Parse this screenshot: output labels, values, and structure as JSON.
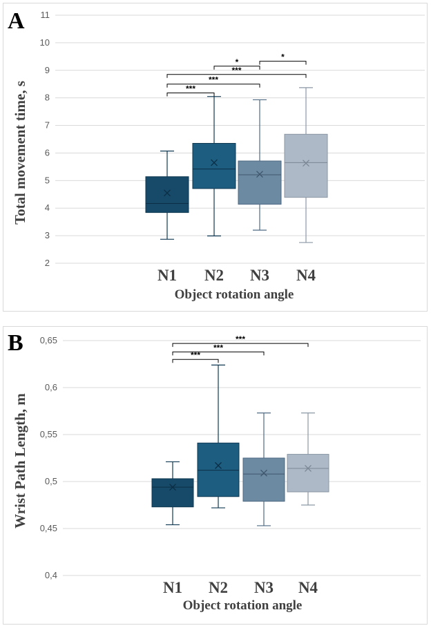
{
  "chart_data": [
    {
      "panel_letter": "A",
      "type": "box",
      "ylabel": "Total movement time, s",
      "xlabel": "Object rotation angle",
      "categories": [
        "N1",
        "N2",
        "N3",
        "N4"
      ],
      "ylim": [
        2,
        11
      ],
      "yticks": [
        "2",
        "3",
        "4",
        "5",
        "6",
        "7",
        "8",
        "9",
        "10",
        "11"
      ],
      "grid": true,
      "colors": [
        "#174a68",
        "#1c5d80",
        "#6d8aa3",
        "#adb9c7"
      ],
      "boxes": [
        {
          "name": "N1",
          "min": 2.87,
          "q1": 3.84,
          "median": 4.17,
          "q3": 5.14,
          "max": 6.07,
          "mean": 4.55
        },
        {
          "name": "N2",
          "min": 2.99,
          "q1": 4.71,
          "median": 5.42,
          "q3": 6.35,
          "max": 8.05,
          "mean": 5.65
        },
        {
          "name": "N3",
          "min": 3.2,
          "q1": 4.14,
          "median": 5.21,
          "q3": 5.71,
          "max": 7.93,
          "mean": 5.23
        },
        {
          "name": "N4",
          "min": 2.75,
          "q1": 4.39,
          "median": 5.65,
          "q3": 6.68,
          "max": 8.37,
          "mean": 5.63
        }
      ],
      "significance": [
        {
          "from": "N1",
          "to": "N2",
          "label": "***",
          "y": 8.18
        },
        {
          "from": "N1",
          "to": "N3",
          "label": "***",
          "y": 8.5
        },
        {
          "from": "N1",
          "to": "N4",
          "label": "***",
          "y": 8.85
        },
        {
          "from": "N2",
          "to": "N3",
          "label": "*",
          "y": 9.15
        },
        {
          "from": "N3",
          "to": "N4",
          "label": "*",
          "y": 9.33
        }
      ]
    },
    {
      "panel_letter": "B",
      "type": "box",
      "ylabel": "Wrist Path Length, m",
      "xlabel": "Object rotation angle",
      "categories": [
        "N1",
        "N2",
        "N3",
        "N4"
      ],
      "ylim": [
        0.4,
        0.65
      ],
      "yticks": [
        "0,4",
        "0,45",
        "0,5",
        "0,55",
        "0,6",
        "0,65"
      ],
      "grid": true,
      "colors": [
        "#174a68",
        "#1c5d80",
        "#6d8aa3",
        "#adb9c7"
      ],
      "boxes": [
        {
          "name": "N1",
          "min": 0.454,
          "q1": 0.473,
          "median": 0.494,
          "q3": 0.503,
          "max": 0.521,
          "mean": 0.494
        },
        {
          "name": "N2",
          "min": 0.472,
          "q1": 0.484,
          "median": 0.512,
          "q3": 0.541,
          "max": 0.624,
          "mean": 0.517
        },
        {
          "name": "N3",
          "min": 0.453,
          "q1": 0.479,
          "median": 0.508,
          "q3": 0.525,
          "max": 0.573,
          "mean": 0.509
        },
        {
          "name": "N4",
          "min": 0.475,
          "q1": 0.489,
          "median": 0.514,
          "q3": 0.529,
          "max": 0.573,
          "mean": 0.514
        }
      ],
      "significance": [
        {
          "from": "N1",
          "to": "N2",
          "label": "***",
          "y": 0.63
        },
        {
          "from": "N1",
          "to": "N3",
          "label": "***",
          "y": 0.638
        },
        {
          "from": "N1",
          "to": "N4",
          "label": "***",
          "y": 0.647
        }
      ]
    }
  ]
}
